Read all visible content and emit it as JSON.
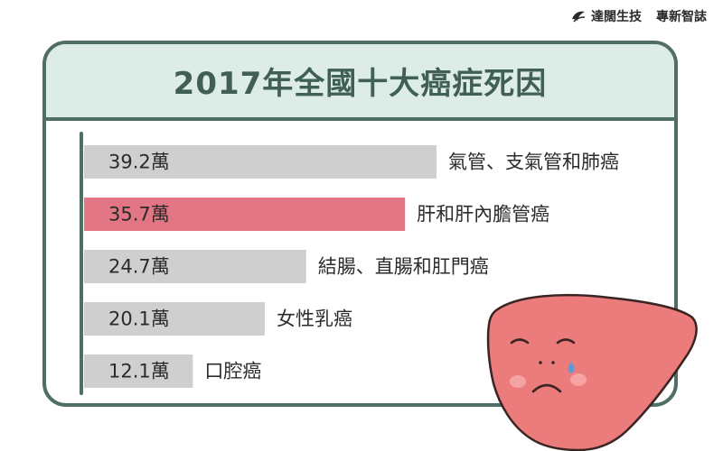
{
  "brand": {
    "name": "達闊生技",
    "tagline": "專新智誌"
  },
  "colors": {
    "frame": "#4f6e66",
    "header_bg": "#deece8",
    "bar_default": "#cfcfcf",
    "bar_highlight": "#e37684",
    "liver": "#ec7b7b"
  },
  "chart_data": {
    "type": "bar",
    "orientation": "horizontal",
    "title": "2017年全國十大癌症死因",
    "unit": "萬",
    "categories": [
      "氣管、支氣管和肺癌",
      "肝和肝內膽管癌",
      "結腸、直腸和肛門癌",
      "女性乳癌",
      "口腔癌"
    ],
    "values": [
      39.2,
      35.7,
      24.7,
      20.1,
      12.1
    ],
    "value_labels": [
      "39.2萬",
      "35.7萬",
      "24.7萬",
      "20.1萬",
      "12.1萬"
    ],
    "highlight_index": 1,
    "xlim": [
      0,
      39.2
    ],
    "grid": false,
    "legend": "none"
  }
}
